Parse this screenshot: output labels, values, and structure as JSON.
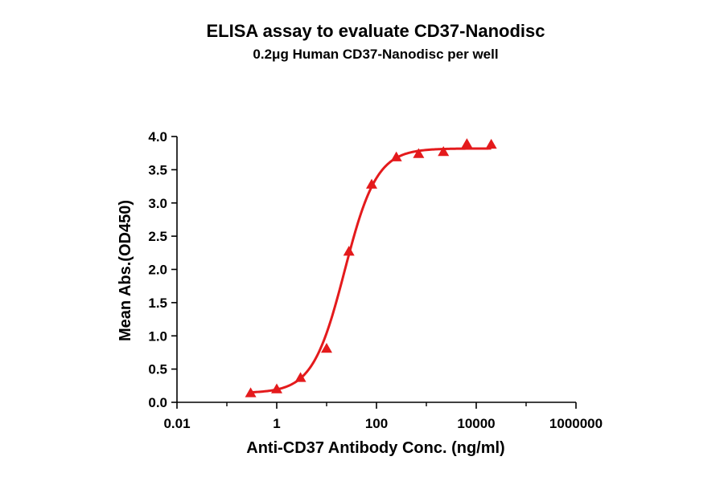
{
  "chart_data": {
    "type": "scatter",
    "title": "ELISA assay to evaluate CD37-Nanodisc",
    "subtitle": "0.2μg Human CD37-Nanodisc per well",
    "xlabel": "Anti-CD37 Antibody Conc. (ng/ml)",
    "ylabel": "Mean Abs.(OD450)",
    "x_scale": "log10",
    "xlim": [
      0.01,
      1000000
    ],
    "ylim": [
      0,
      4.0
    ],
    "x_ticks": [
      0.01,
      1,
      100,
      10000,
      1000000
    ],
    "x_tick_labels": [
      "0.01",
      "1",
      "100",
      "10000",
      "1000000"
    ],
    "y_ticks": [
      0,
      0.5,
      1.0,
      1.5,
      2.0,
      2.5,
      3.0,
      3.5,
      4.0
    ],
    "y_tick_labels": [
      "0.0",
      "0.5",
      "1.0",
      "1.5",
      "2.0",
      "2.5",
      "3.0",
      "3.5",
      "4.0"
    ],
    "grid": false,
    "legend": "none",
    "color": "#e41a1c",
    "marker": "triangle",
    "series": [
      {
        "x": [
          0.3,
          1.0,
          3.0,
          10,
          28,
          80,
          250,
          700,
          2200,
          6500,
          20000
        ],
        "y": [
          0.14,
          0.2,
          0.37,
          0.81,
          2.27,
          3.28,
          3.69,
          3.74,
          3.77,
          3.89,
          3.88
        ]
      }
    ],
    "fit": {
      "model": "4PL",
      "bottom": 0.14,
      "top": 3.82,
      "ec50": 23,
      "hill": 1.35,
      "x_range": [
        0.3,
        20000
      ]
    }
  }
}
